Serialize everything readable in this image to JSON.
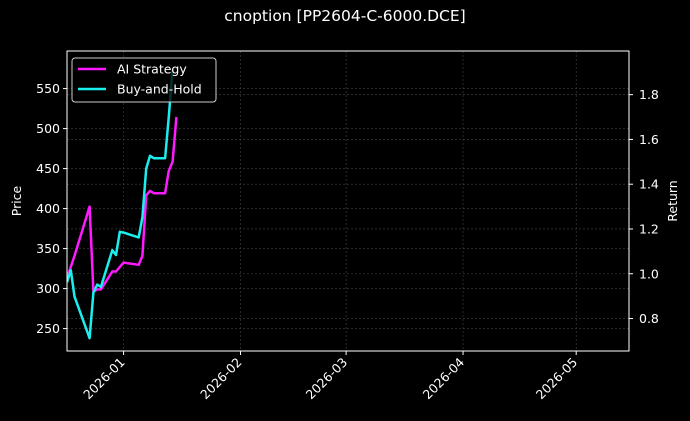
{
  "title": "cnoption [PP2604-C-6000.DCE]",
  "colors": {
    "background": "#000000",
    "ai_strategy": "#ff1aff",
    "buy_and_hold": "#1aeeee",
    "grid": "#444444",
    "axes": "#ffffff"
  },
  "axes": {
    "left_label": "Price",
    "right_label": "Return",
    "left_ticks": [
      "250",
      "300",
      "350",
      "400",
      "450",
      "500",
      "550"
    ],
    "right_ticks": [
      "0.8",
      "1.0",
      "1.2",
      "1.4",
      "1.6",
      "1.8"
    ],
    "x_ticks": [
      "2026-01",
      "2026-02",
      "2026-03",
      "2026-04",
      "2026-05"
    ]
  },
  "legend": {
    "items": [
      {
        "label": "AI Strategy",
        "color": "#ff1aff"
      },
      {
        "label": "Buy-and-Hold",
        "color": "#1aeeee"
      }
    ]
  },
  "chart_data": {
    "type": "line",
    "title": "cnoption [PP2604-C-6000.DCE]",
    "xlabel": "",
    "ylabel": "Price",
    "ylabel_right": "Return",
    "ylim": [
      222,
      597
    ],
    "ylim_right": [
      0.655,
      1.995
    ],
    "xlim": [
      "2025-12-17",
      "2026-05-15"
    ],
    "x_ticks": [
      "2026-01",
      "2026-02",
      "2026-03",
      "2026-04",
      "2026-05"
    ],
    "grid": true,
    "legend_position": "upper left",
    "series": [
      {
        "name": "AI Strategy",
        "axis": "right",
        "x": [
          "2025-12-17",
          "2025-12-19",
          "2025-12-23",
          "2025-12-24",
          "2025-12-25",
          "2025-12-26",
          "2025-12-29",
          "2025-12-30",
          "2025-12-31",
          "2026-01-01",
          "2026-01-05",
          "2026-01-06",
          "2026-01-07",
          "2026-01-08",
          "2026-01-09",
          "2026-01-12",
          "2026-01-13",
          "2026-01-14",
          "2026-01-15"
        ],
        "values": [
          0.98,
          1.08,
          1.3,
          0.92,
          0.93,
          0.93,
          1.01,
          1.01,
          1.03,
          1.05,
          1.04,
          1.08,
          1.35,
          1.37,
          1.36,
          1.36,
          1.46,
          1.5,
          1.7
        ]
      },
      {
        "name": "Buy-and-Hold",
        "axis": "left",
        "x": [
          "2025-12-17",
          "2025-12-18",
          "2025-12-19",
          "2025-12-23",
          "2025-12-24",
          "2025-12-25",
          "2025-12-26",
          "2025-12-29",
          "2025-12-30",
          "2025-12-31",
          "2026-01-01",
          "2026-01-05",
          "2026-01-06",
          "2026-01-07",
          "2026-01-08",
          "2026-01-09",
          "2026-01-12",
          "2026-01-13",
          "2026-01-14"
        ],
        "values": [
          308,
          323,
          290,
          238,
          295,
          305,
          302,
          348,
          342,
          371,
          370,
          364,
          389,
          450,
          466,
          463,
          463,
          515,
          575
        ]
      }
    ]
  }
}
